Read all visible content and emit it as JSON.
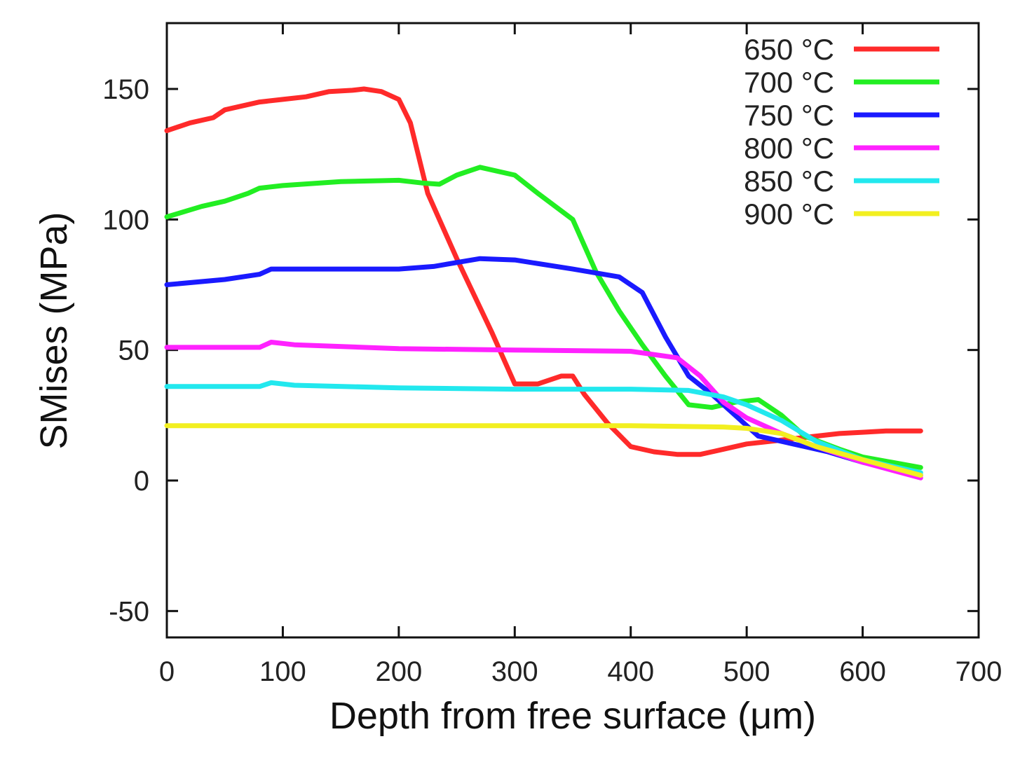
{
  "chart_data": {
    "type": "line",
    "title": "",
    "xlabel": "Depth from free surface (μm)",
    "ylabel": "SMises (MPa)",
    "xlim": [
      0,
      700
    ],
    "ylim": [
      -60,
      175
    ],
    "xticks": [
      0,
      100,
      200,
      300,
      400,
      500,
      600,
      700
    ],
    "xtick_labels": [
      "0",
      "100",
      "200",
      "300",
      "400",
      "500",
      "600",
      "700"
    ],
    "yticks": [
      -50,
      0,
      50,
      100,
      150
    ],
    "ytick_labels": [
      "-50",
      "0",
      "50",
      "100",
      "150"
    ],
    "grid": false,
    "legend_position": "top-right",
    "series": [
      {
        "name": "650 °C",
        "color": "#ff2a2a",
        "x": [
          0,
          20,
          40,
          50,
          80,
          100,
          120,
          140,
          160,
          170,
          185,
          200,
          210,
          225,
          250,
          280,
          300,
          320,
          340,
          350,
          360,
          380,
          400,
          420,
          440,
          460,
          480,
          500,
          520,
          540,
          560,
          580,
          600,
          620,
          650
        ],
        "y": [
          134,
          137,
          139,
          142,
          145,
          146,
          147,
          149,
          149.5,
          150,
          149,
          146,
          137,
          110,
          85,
          57,
          37,
          37,
          40,
          40,
          33,
          22,
          13,
          11,
          10,
          10,
          12,
          14,
          15,
          16,
          17,
          18,
          18.5,
          19,
          19
        ]
      },
      {
        "name": "700 °C",
        "color": "#22ee22",
        "x": [
          0,
          30,
          50,
          70,
          80,
          100,
          150,
          200,
          220,
          235,
          250,
          270,
          300,
          320,
          350,
          370,
          390,
          410,
          430,
          450,
          470,
          490,
          510,
          530,
          550,
          580,
          600,
          650
        ],
        "y": [
          101,
          105,
          107,
          110,
          112,
          113,
          114.5,
          115,
          114,
          113.5,
          117,
          120,
          117,
          110,
          100,
          80,
          65,
          52,
          40,
          29,
          28,
          30,
          31,
          25,
          17,
          12,
          9,
          5
        ]
      },
      {
        "name": "750 °C",
        "color": "#1a1aff",
        "x": [
          0,
          50,
          80,
          90,
          150,
          200,
          230,
          270,
          300,
          350,
          390,
          410,
          430,
          450,
          470,
          490,
          510,
          540,
          570,
          600,
          650
        ],
        "y": [
          75,
          77,
          79,
          81,
          81,
          81,
          82,
          85,
          84.5,
          81,
          78,
          72,
          55,
          40,
          33,
          25,
          17,
          14,
          11,
          7,
          2
        ]
      },
      {
        "name": "800 °C",
        "color": "#ff22ff",
        "x": [
          0,
          40,
          80,
          90,
          110,
          200,
          300,
          400,
          440,
          460,
          480,
          500,
          530,
          560,
          600,
          650
        ],
        "y": [
          51,
          51,
          51,
          53,
          52,
          50.5,
          50,
          49.5,
          47,
          40,
          30,
          24,
          18,
          13,
          7,
          1
        ]
      },
      {
        "name": "850 °C",
        "color": "#22e8ee",
        "x": [
          0,
          40,
          80,
          90,
          110,
          200,
          300,
          400,
          450,
          480,
          500,
          530,
          560,
          600,
          650
        ],
        "y": [
          36,
          36,
          36,
          37.5,
          36.5,
          35.5,
          35,
          35,
          34.5,
          32,
          29,
          23,
          15,
          8,
          3
        ]
      },
      {
        "name": "900 °C",
        "color": "#f2ef20",
        "x": [
          0,
          50,
          100,
          200,
          300,
          400,
          480,
          500,
          530,
          560,
          600,
          650
        ],
        "y": [
          21,
          21,
          21,
          21,
          21,
          21,
          20.5,
          20,
          18,
          13,
          8,
          2
        ]
      }
    ]
  }
}
